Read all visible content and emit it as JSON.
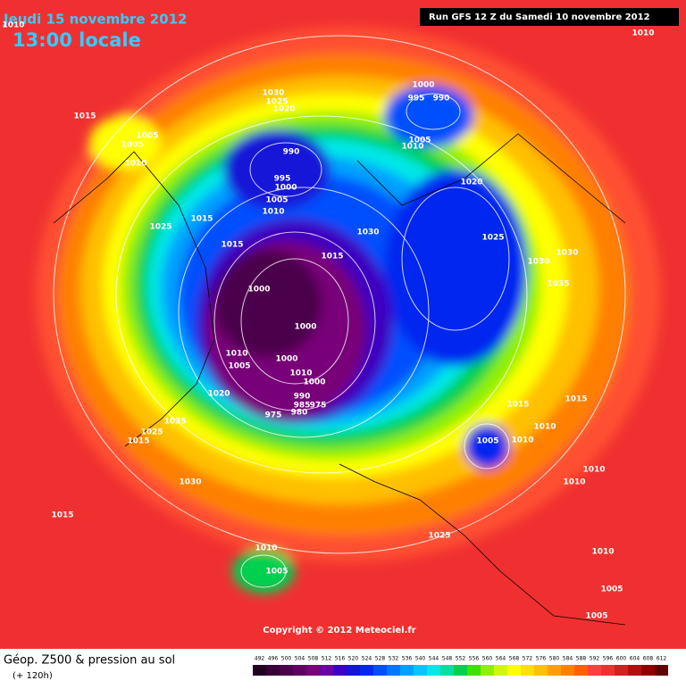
{
  "header": {
    "date": "Jeudi 15 novembre 2012",
    "time": "13:00 locale",
    "run": "Run GFS 12 Z du Samedi 10 novembre 2012"
  },
  "map": {
    "pressure_labels": [
      1010,
      1010,
      1030,
      1025,
      1020,
      1000,
      995,
      990,
      1015,
      1005,
      1005,
      1010,
      1005,
      1010,
      990,
      995,
      1000,
      1005,
      1010,
      1020,
      1015,
      1025,
      1030,
      1025,
      1015,
      1015,
      1030,
      1030,
      1000,
      1035,
      1000,
      1010,
      1005,
      1000,
      1010,
      1000,
      990,
      985,
      975,
      980,
      975,
      1015,
      1010,
      1020,
      1035,
      1025,
      1015,
      1005,
      1010,
      1010,
      1010,
      1015,
      1030,
      1015,
      1025,
      1010,
      1005,
      1010,
      1005,
      1005
    ]
  },
  "copyright": "Copyright © 2012 Meteociel.fr",
  "legend": {
    "title": "Géop. Z500 & pression au sol",
    "lead": "(+ 120h)",
    "scale": {
      "values": [
        492,
        496,
        500,
        504,
        508,
        512,
        516,
        520,
        524,
        528,
        532,
        536,
        540,
        544,
        548,
        552,
        556,
        560,
        564,
        568,
        572,
        576,
        580,
        584,
        588,
        592,
        596,
        600,
        604,
        608,
        612
      ],
      "colors": [
        "#200020",
        "#380038",
        "#4c004c",
        "#600060",
        "#780078",
        "#6a00a0",
        "#3c00c0",
        "#1414d8",
        "#0028f0",
        "#0050ff",
        "#0078ff",
        "#00a0ff",
        "#00c8ff",
        "#00e8e8",
        "#00e0a0",
        "#00d050",
        "#40e000",
        "#90f000",
        "#d0f800",
        "#ffff00",
        "#ffe000",
        "#ffc000",
        "#ffa000",
        "#ff8000",
        "#ff6000",
        "#ff4040",
        "#f03030",
        "#d02020",
        "#b01010",
        "#900000",
        "#600000"
      ]
    }
  }
}
